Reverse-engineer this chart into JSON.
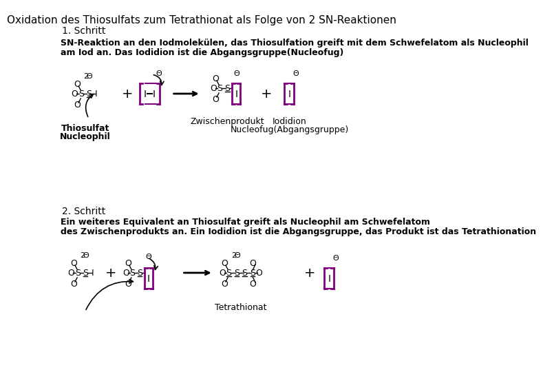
{
  "title": "Oxidation des Thiosulfats zum Tetrathionat als Folge von 2 SN-Reaktionen",
  "title_fontsize": 11,
  "bg_color": "#ffffff",
  "text_color": "#000000",
  "purple_color": "#800080",
  "step1_label": "1. Schritt",
  "step1_desc1": "SN-Reaktion an den Iodmolekülen, das Thiosulfation greift mit dem Schwefelatom als Nucleophil",
  "step1_desc2": "am Iod an. Das Iodidion ist die Abgangsgruppe(Nucleofug)",
  "step2_label": "2. Schritt",
  "step2_desc1": "Ein weiteres Equivalent an Thiosulfat greift als Nucleophil am Schwefelatom",
  "step2_desc2": "des Zwischenprodukts an. Ein Iodidion ist die Abgangsgruppe, das Produkt ist das Tetrathionation"
}
